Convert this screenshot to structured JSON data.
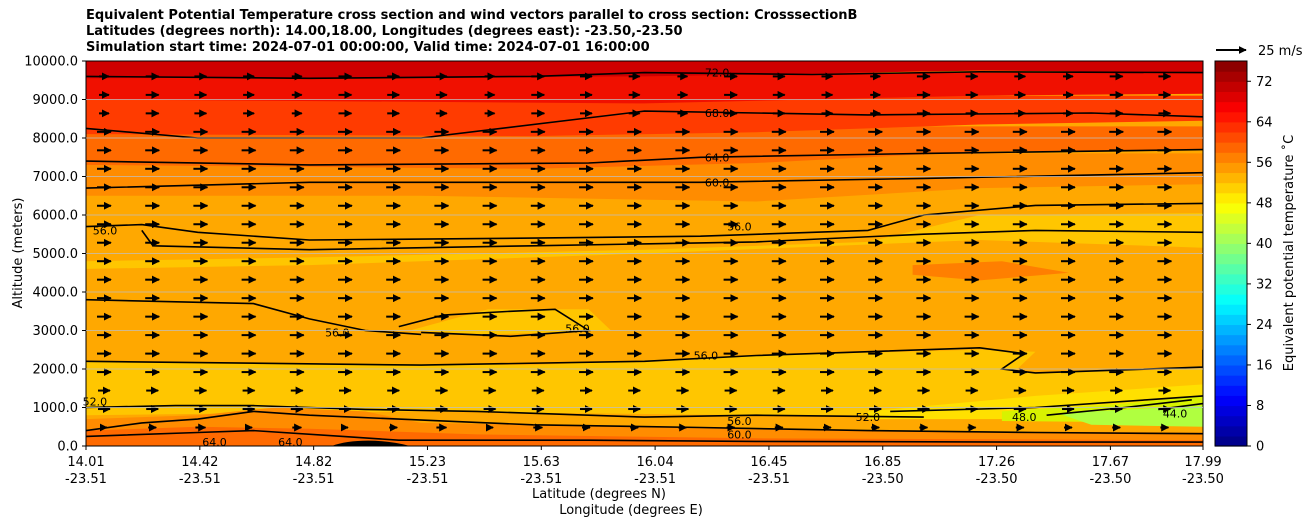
{
  "chart_data": {
    "type": "heatmap",
    "title_lines": [
      "Equivalent Potential Temperature cross section and wind vectors parallel to cross section: CrosssectionB",
      "Latitudes (degrees north): 14.00,18.00, Longitudes (degrees east): -23.50,-23.50",
      "Simulation start time: 2024-07-01 00:00:00, Valid time: 2024-07-01 16:00:00"
    ],
    "ylabel": "Altitude (meters)",
    "xlabel_lat": "Latitude (degrees N)",
    "xlabel_lon": "Longitude (degrees E)",
    "ylim": [
      0,
      10000
    ],
    "y_ticks": [
      "0.0",
      "1000.0",
      "2000.0",
      "3000.0",
      "4000.0",
      "5000.0",
      "6000.0",
      "7000.0",
      "8000.0",
      "9000.0",
      "10000.0"
    ],
    "x_ticks": [
      {
        "lat": "14.01",
        "lon": "-23.51"
      },
      {
        "lat": "14.42",
        "lon": "-23.51"
      },
      {
        "lat": "14.82",
        "lon": "-23.51"
      },
      {
        "lat": "15.23",
        "lon": "-23.51"
      },
      {
        "lat": "15.63",
        "lon": "-23.51"
      },
      {
        "lat": "16.04",
        "lon": "-23.51"
      },
      {
        "lat": "16.45",
        "lon": "-23.51"
      },
      {
        "lat": "16.85",
        "lon": "-23.50"
      },
      {
        "lat": "17.26",
        "lon": "-23.50"
      },
      {
        "lat": "17.67",
        "lon": "-23.50"
      },
      {
        "lat": "17.99",
        "lon": "-23.50"
      }
    ],
    "colorbar": {
      "label": "Equivalent potential temperature ˚C",
      "range": [
        0,
        76
      ],
      "ticks": [
        "0",
        "8",
        "16",
        "24",
        "32",
        "40",
        "48",
        "56",
        "64",
        "72"
      ]
    },
    "quiver_key": "25 m/s",
    "contour_labels": [
      {
        "text": "72.0",
        "x": 0.565,
        "y": 9700
      },
      {
        "text": "68.0",
        "x": 0.565,
        "y": 8650
      },
      {
        "text": "64.0",
        "x": 0.565,
        "y": 7500
      },
      {
        "text": "60.0",
        "x": 0.565,
        "y": 6850
      },
      {
        "text": "56.0",
        "x": 0.585,
        "y": 5700
      },
      {
        "text": "56.0",
        "x": 0.017,
        "y": 5600
      },
      {
        "text": "56.0",
        "x": 0.225,
        "y": 2950
      },
      {
        "text": "56.0",
        "x": 0.44,
        "y": 3050
      },
      {
        "text": "56.0",
        "x": 0.555,
        "y": 2350
      },
      {
        "text": "52.0",
        "x": 0.008,
        "y": 1150
      },
      {
        "text": "56.0",
        "x": 0.585,
        "y": 650
      },
      {
        "text": "60.0",
        "x": 0.585,
        "y": 300
      },
      {
        "text": "64.0",
        "x": 0.115,
        "y": 100
      },
      {
        "text": "64.0",
        "x": 0.183,
        "y": 100
      },
      {
        "text": "52.0",
        "x": 0.7,
        "y": 750
      },
      {
        "text": "48.0",
        "x": 0.84,
        "y": 750
      },
      {
        "text": "44.0",
        "x": 0.975,
        "y": 850
      }
    ]
  }
}
